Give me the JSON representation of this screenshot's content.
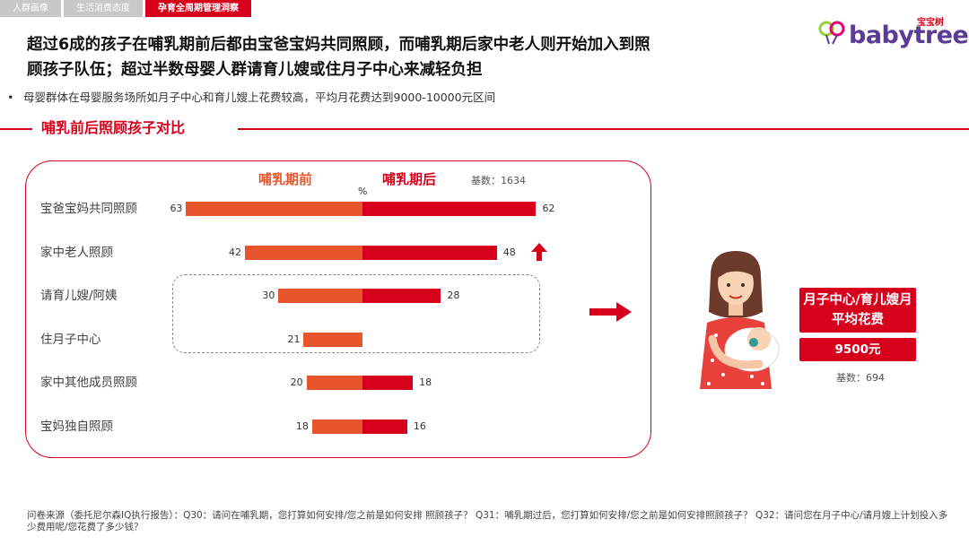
{
  "tabs": [
    {
      "label": "人群画像",
      "active": false
    },
    {
      "label": "生活消费态度",
      "active": false
    },
    {
      "label": "孕育全周期管理洞察",
      "active": true
    }
  ],
  "logo": {
    "cn": "宝宝树",
    "en": "babytree"
  },
  "headline": {
    "line1": "超过6成的孩子在哺乳期前后都由宝爸宝妈共同照顾，而哺乳期后家中老人则开始加入到照",
    "line2": "顾孩子队伍；超过半数母婴人群请育儿嫂或住月子中心来减轻负担"
  },
  "bullet": {
    "marker": "•",
    "text": "母婴群体在母婴服务场所如月子中心和育儿嫂上花费较高，平均月花费达到9000-10000元区间"
  },
  "section_title": "哺乳前后照顾孩子对比",
  "chart_data": {
    "type": "bar",
    "orientation": "horizontal-diverging",
    "title": "",
    "unit": "%",
    "base_label": "基数：1634",
    "categories": [
      "宝爸宝妈共同照顾",
      "家中老人照顾",
      "请育儿嫂/阿姨",
      "住月子中心",
      "家中其他成员照顾",
      "宝妈独自照顾"
    ],
    "series": [
      {
        "name": "哺乳期前",
        "color": "#e8542b",
        "values": [
          63,
          42,
          30,
          21,
          20,
          18
        ]
      },
      {
        "name": "哺乳期后",
        "color": "#d6001c",
        "values": [
          62,
          48,
          28,
          null,
          18,
          16
        ]
      }
    ],
    "highlight": {
      "up_arrow_category": "家中老人照顾",
      "dashed_group": [
        "请育儿嫂/阿姨",
        "住月子中心"
      ]
    }
  },
  "callout": {
    "head": "月子中心/育儿嫂月平均花费",
    "value": "9500元",
    "base_label": "基数：694"
  },
  "source": "问卷来源（委托尼尔森IQ执行报告）：Q30：请问在哺乳期，您打算如何安排/您之前是如何安排 照顾孩子？ Q31：哺乳期过后，您打算如何安排/您之前是如何安排照顾孩子？ Q32：请问您在月子中心/请月嫂上计划投入多少费用呢/您花费了多少钱？",
  "colors": {
    "accent": "#d6001c",
    "before": "#e8542b",
    "grey_tab": "#c8c8c8"
  }
}
